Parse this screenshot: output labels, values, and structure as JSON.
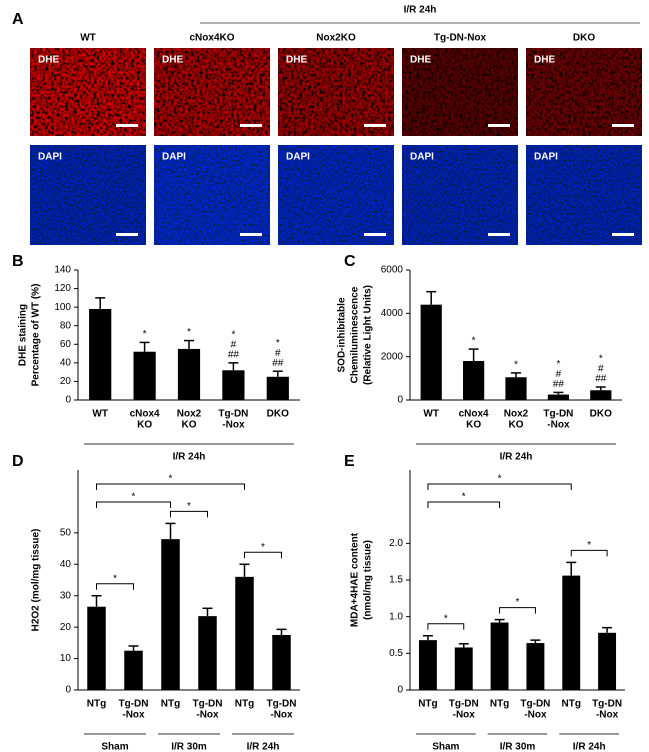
{
  "figure_a": {
    "label": "A",
    "title": "I/R  24h",
    "columns": [
      "WT",
      "cNox4KO",
      "Nox2KO",
      "Tg-DN-Nox",
      "DKO"
    ],
    "rows": [
      "DHE",
      "DAPI"
    ]
  },
  "chart_data": [
    {
      "type": "bar",
      "panel": "B",
      "ylabel": [
        "DHE staining",
        "Percentage of WT (%)"
      ],
      "categories": [
        [
          "WT"
        ],
        [
          "cNox4",
          "KO"
        ],
        [
          "Nox2",
          "KO"
        ],
        [
          "Tg-DN",
          "-Nox"
        ],
        [
          "DKO"
        ]
      ],
      "values": [
        98,
        52,
        55,
        32,
        25
      ],
      "errors": [
        12,
        10,
        9,
        8,
        6
      ],
      "bar_labels": [
        [],
        [
          "*"
        ],
        [
          "*"
        ],
        [
          "*",
          "#",
          "##"
        ],
        [
          "*",
          "#",
          "##"
        ]
      ],
      "groups": [
        "I/R 24h"
      ],
      "color": "#000000",
      "ylim": [
        0,
        140
      ],
      "yticks": [
        0,
        20,
        40,
        60,
        80,
        100,
        120,
        140
      ]
    },
    {
      "type": "bar",
      "panel": "C",
      "ylabel": [
        "SOD-inhibitable",
        "Chemiluminescence",
        "(Relative Light Units)"
      ],
      "categories": [
        [
          "WT"
        ],
        [
          "cNox4",
          "KO"
        ],
        [
          "Nox2",
          "KO"
        ],
        [
          "Tg-DN",
          "-Nox"
        ],
        [
          "DKO"
        ]
      ],
      "values": [
        4400,
        1800,
        1050,
        250,
        450
      ],
      "errors": [
        600,
        550,
        200,
        100,
        150
      ],
      "bar_labels": [
        [],
        [
          "*"
        ],
        [
          "*"
        ],
        [
          "*",
          "#",
          "##"
        ],
        [
          "*",
          "#",
          "##"
        ]
      ],
      "groups": [
        "I/R 24h"
      ],
      "color": "#000000",
      "ylim": [
        0,
        6000
      ],
      "yticks": [
        0,
        2000,
        4000,
        6000
      ]
    },
    {
      "type": "bar",
      "panel": "D",
      "ylabel": [
        "H2O2 (mol/mg tissue)"
      ],
      "categories": [
        [
          "NTg"
        ],
        [
          "Tg-DN",
          "-Nox"
        ],
        [
          "NTg"
        ],
        [
          "Tg-DN",
          "-Nox"
        ],
        [
          "NTg"
        ],
        [
          "Tg-DN",
          "-Nox"
        ]
      ],
      "values": [
        26.5,
        12.5,
        48,
        23.5,
        36,
        17.5
      ],
      "errors": [
        3.5,
        1.5,
        5,
        2.5,
        4,
        1.8
      ],
      "significance": [
        "*",
        "*",
        "*",
        "*",
        "*"
      ],
      "groups": [
        "Sham",
        "I/R 30m",
        "I/R 24h"
      ],
      "color": "#000000",
      "ylim": [
        0,
        70
      ],
      "yticks": [
        0,
        10,
        20,
        30,
        40,
        50
      ]
    },
    {
      "type": "bar",
      "panel": "E",
      "ylabel": [
        "MDA+4HAE content",
        "(nmol/mg tissue)"
      ],
      "categories": [
        [
          "NTg"
        ],
        [
          "Tg-DN",
          "-Nox"
        ],
        [
          "NTg"
        ],
        [
          "Tg-DN",
          "-Nox"
        ],
        [
          "NTg"
        ],
        [
          "Tg-DN",
          "-Nox"
        ]
      ],
      "values": [
        0.68,
        0.58,
        0.92,
        0.64,
        1.56,
        0.78
      ],
      "errors": [
        0.06,
        0.05,
        0.04,
        0.04,
        0.18,
        0.07
      ],
      "significance": [
        "*",
        "*",
        "*",
        "*",
        "*"
      ],
      "groups": [
        "Sham",
        "I/R 30m",
        "I/R 24h"
      ],
      "color": "#000000",
      "ylim": [
        0,
        3
      ],
      "yticks": [
        0,
        0.5,
        {
          "value": 1,
          "label": "1.0"
        },
        1.5,
        {
          "value": 2,
          "label": "2.0"
        }
      ]
    }
  ]
}
